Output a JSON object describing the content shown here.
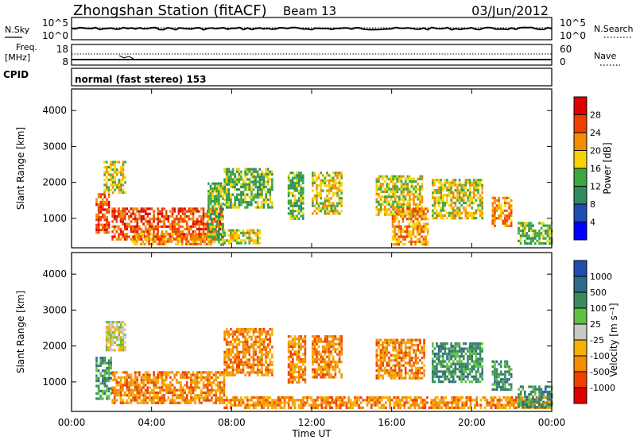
{
  "header": {
    "station": "Zhongshan Station (fitACF)",
    "beam": "Beam 13",
    "date": "03/Jun/2012"
  },
  "strips": {
    "nsky_label": "N.Sky",
    "nsky_ticks": [
      "10^5",
      "10^0"
    ],
    "nsearch_label": "N.Search",
    "nsearch_ticks": [
      "10^5",
      "10^0"
    ],
    "freq_label_1": "Freq.",
    "freq_label_2": "[MHz]",
    "freq_ticks": [
      "18",
      "8"
    ],
    "nave_label": "Nave",
    "nave_ticks": [
      "60",
      "0"
    ],
    "cpid_label": "CPID",
    "cpid_text": "normal (fast stereo) 153"
  },
  "x_axis": {
    "label": "Time UT",
    "ticks": [
      "00:00",
      "04:00",
      "08:00",
      "12:00",
      "16:00",
      "20:00",
      "00:00"
    ]
  },
  "chart_data": [
    {
      "type": "heatmap",
      "name": "power",
      "ylabel": "Slant Range [km]",
      "yticks": [
        "1000",
        "2000",
        "3000",
        "4000"
      ],
      "ylim": [
        180,
        4600
      ],
      "xlim_hours": [
        0,
        24
      ],
      "colorbar_label": "Power [dB]",
      "colorbar_ticks": [
        "4",
        "8",
        "12",
        "16",
        "20",
        "24",
        "28"
      ],
      "colors": [
        "#0000ff",
        "#1f4eb0",
        "#2f8a5e",
        "#3aa83f",
        "#f5d300",
        "#f28c00",
        "#f04000",
        "#e00000"
      ],
      "blobs": [
        {
          "t": [
            1.2,
            1.9
          ],
          "r": [
            600,
            1700
          ],
          "v": 6
        },
        {
          "t": [
            1.6,
            2.7
          ],
          "r": [
            1700,
            2600
          ],
          "v": 4
        },
        {
          "t": [
            2.0,
            7.5
          ],
          "r": [
            400,
            1300
          ],
          "v": 6
        },
        {
          "t": [
            3.0,
            7.0
          ],
          "r": [
            300,
            600
          ],
          "v": 5
        },
        {
          "t": [
            6.8,
            7.6
          ],
          "r": [
            300,
            2000
          ],
          "v": 3
        },
        {
          "t": [
            7.6,
            9.4
          ],
          "r": [
            300,
            700
          ],
          "v": 4
        },
        {
          "t": [
            7.6,
            10.0
          ],
          "r": [
            1300,
            2400
          ],
          "v": 3
        },
        {
          "t": [
            10.8,
            11.6
          ],
          "r": [
            1000,
            2300
          ],
          "v": 3
        },
        {
          "t": [
            12.0,
            13.5
          ],
          "r": [
            1100,
            2300
          ],
          "v": 4
        },
        {
          "t": [
            15.2,
            17.5
          ],
          "r": [
            1100,
            2200
          ],
          "v": 4
        },
        {
          "t": [
            16.0,
            17.8
          ],
          "r": [
            300,
            1300
          ],
          "v": 5
        },
        {
          "t": [
            18.0,
            20.5
          ],
          "r": [
            1000,
            2100
          ],
          "v": 4
        },
        {
          "t": [
            21.0,
            22.0
          ],
          "r": [
            800,
            1600
          ],
          "v": 5
        },
        {
          "t": [
            22.3,
            24.0
          ],
          "r": [
            300,
            900
          ],
          "v": 3
        }
      ]
    },
    {
      "type": "heatmap",
      "name": "velocity",
      "ylabel": "Slant Range [km]",
      "yticks": [
        "1000",
        "2000",
        "3000",
        "4000"
      ],
      "ylim": [
        180,
        4600
      ],
      "xlim_hours": [
        0,
        24
      ],
      "colorbar_label": "Velocity [m s⁻¹]",
      "colorbar_ticks": [
        "1000",
        "500",
        "100",
        "25",
        "-25",
        "-100",
        "-500",
        "-1000"
      ],
      "colors": [
        "#1f4eb0",
        "#2f6a8a",
        "#3a8a5e",
        "#60c040",
        "#c8c8c8",
        "#f5b000",
        "#f28c00",
        "#f04000",
        "#e00000"
      ],
      "blobs": [
        {
          "t": [
            1.2,
            2.0
          ],
          "r": [
            500,
            1700
          ],
          "v": 2
        },
        {
          "t": [
            1.7,
            2.7
          ],
          "r": [
            1900,
            2700
          ],
          "v": 4
        },
        {
          "t": [
            2.0,
            7.6
          ],
          "r": [
            400,
            1300
          ],
          "v": 6
        },
        {
          "t": [
            7.6,
            10.0
          ],
          "r": [
            1200,
            2500
          ],
          "v": 6
        },
        {
          "t": [
            7.6,
            24.0
          ],
          "r": [
            300,
            600
          ],
          "v": 6
        },
        {
          "t": [
            10.8,
            11.7
          ],
          "r": [
            1000,
            2300
          ],
          "v": 6
        },
        {
          "t": [
            12.0,
            13.5
          ],
          "r": [
            1100,
            2300
          ],
          "v": 6
        },
        {
          "t": [
            15.2,
            17.6
          ],
          "r": [
            1100,
            2200
          ],
          "v": 6
        },
        {
          "t": [
            18.0,
            20.5
          ],
          "r": [
            1000,
            2100
          ],
          "v": 2
        },
        {
          "t": [
            21.0,
            22.0
          ],
          "r": [
            800,
            1600
          ],
          "v": 2
        },
        {
          "t": [
            22.3,
            24.0
          ],
          "r": [
            300,
            900
          ],
          "v": 2
        }
      ]
    }
  ]
}
